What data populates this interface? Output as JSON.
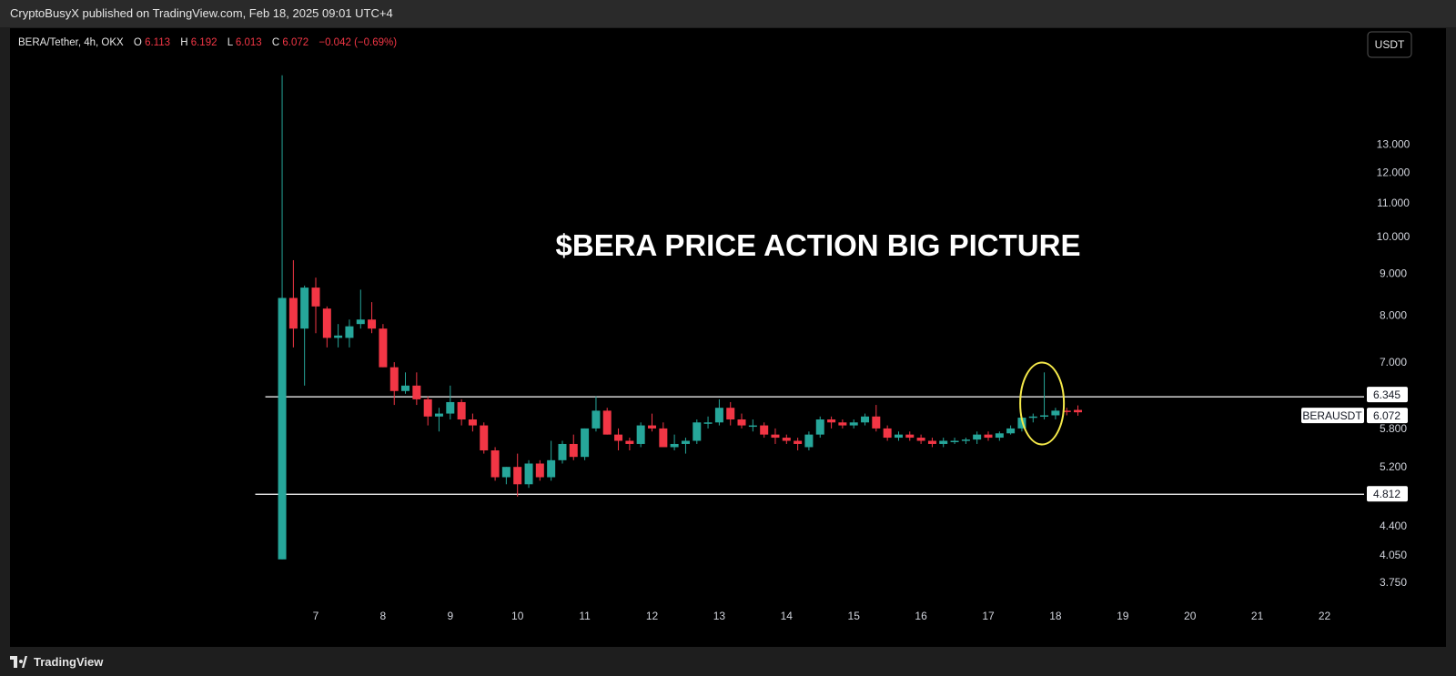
{
  "header": {
    "published_text": "CryptoBusyX published on TradingView.com, Feb 18, 2025 09:01 UTC+4"
  },
  "legend": {
    "symbol": "BERA/Tether, 4h, OKX",
    "o_label": "O",
    "o_value": "6.113",
    "h_label": "H",
    "h_value": "6.192",
    "l_label": "L",
    "l_value": "6.013",
    "c_label": "C",
    "c_value": "6.072",
    "change": "−0.042 (−0.69%)"
  },
  "currency_button": "USDT",
  "annotation": "$BERA PRICE ACTION BIG PICTURE",
  "series_label": "BERAUSDT",
  "footer": {
    "brand": "TradingView"
  },
  "colors": {
    "up": "#26a69a",
    "down": "#f23645",
    "background": "#000000",
    "highlight": "#f5e94a"
  },
  "chart_data": {
    "type": "candlestick",
    "interval": "4h",
    "scale": "log",
    "ylim": [
      3.7,
      16.5
    ],
    "y_ticks": [
      "13.000",
      "12.000",
      "11.000",
      "10.000",
      "9.000",
      "8.000",
      "7.000",
      "5.800",
      "5.200",
      "4.400",
      "4.050",
      "3.750"
    ],
    "x_ticks": [
      "7",
      "8",
      "9",
      "10",
      "11",
      "12",
      "13",
      "14",
      "15",
      "16",
      "17",
      "18",
      "19",
      "20",
      "21",
      "22"
    ],
    "x_range": [
      6.55,
      22.55
    ],
    "levels": [
      {
        "price": 6.345,
        "label": "6.345",
        "from_day": 6.25
      },
      {
        "price": 4.812,
        "label": "4.812",
        "from_day": 6.1
      }
    ],
    "last_price": {
      "value": 6.072,
      "label": "6.072"
    },
    "highlight_day": 17.8,
    "candles": [
      {
        "d": 6.5,
        "o": 4.0,
        "h": 15.8,
        "l": 4.0,
        "c": 8.4
      },
      {
        "d": 6.667,
        "o": 8.4,
        "h": 9.35,
        "l": 7.3,
        "c": 7.7
      },
      {
        "d": 6.833,
        "o": 7.7,
        "h": 8.7,
        "l": 6.55,
        "c": 8.65
      },
      {
        "d": 7.0,
        "o": 8.65,
        "h": 8.9,
        "l": 7.6,
        "c": 8.2
      },
      {
        "d": 7.167,
        "o": 8.15,
        "h": 8.2,
        "l": 7.3,
        "c": 7.5
      },
      {
        "d": 7.333,
        "o": 7.5,
        "h": 7.8,
        "l": 7.3,
        "c": 7.55
      },
      {
        "d": 7.5,
        "o": 7.5,
        "h": 7.9,
        "l": 7.3,
        "c": 7.75
      },
      {
        "d": 7.667,
        "o": 7.8,
        "h": 8.6,
        "l": 7.7,
        "c": 7.9
      },
      {
        "d": 7.833,
        "o": 7.9,
        "h": 8.3,
        "l": 7.6,
        "c": 7.7
      },
      {
        "d": 8.0,
        "o": 7.7,
        "h": 7.8,
        "l": 6.9,
        "c": 6.9
      },
      {
        "d": 8.167,
        "o": 6.9,
        "h": 7.0,
        "l": 6.2,
        "c": 6.45
      },
      {
        "d": 8.333,
        "o": 6.45,
        "h": 6.8,
        "l": 6.4,
        "c": 6.55
      },
      {
        "d": 8.5,
        "o": 6.55,
        "h": 6.8,
        "l": 6.2,
        "c": 6.3
      },
      {
        "d": 8.667,
        "o": 6.3,
        "h": 6.35,
        "l": 5.85,
        "c": 6.0
      },
      {
        "d": 8.833,
        "o": 6.0,
        "h": 6.15,
        "l": 5.75,
        "c": 6.05
      },
      {
        "d": 9.0,
        "o": 6.05,
        "h": 6.55,
        "l": 5.95,
        "c": 6.25
      },
      {
        "d": 9.167,
        "o": 6.25,
        "h": 6.3,
        "l": 5.85,
        "c": 5.95
      },
      {
        "d": 9.333,
        "o": 5.95,
        "h": 6.05,
        "l": 5.75,
        "c": 5.85
      },
      {
        "d": 9.5,
        "o": 5.85,
        "h": 5.9,
        "l": 5.4,
        "c": 5.45
      },
      {
        "d": 9.667,
        "o": 5.45,
        "h": 5.5,
        "l": 5.0,
        "c": 5.05
      },
      {
        "d": 9.833,
        "o": 5.05,
        "h": 5.2,
        "l": 4.95,
        "c": 5.2
      },
      {
        "d": 10.0,
        "o": 5.2,
        "h": 5.4,
        "l": 4.78,
        "c": 4.95
      },
      {
        "d": 10.167,
        "o": 4.95,
        "h": 5.3,
        "l": 4.9,
        "c": 5.25
      },
      {
        "d": 10.333,
        "o": 5.25,
        "h": 5.3,
        "l": 5.0,
        "c": 5.05
      },
      {
        "d": 10.5,
        "o": 5.05,
        "h": 5.6,
        "l": 5.0,
        "c": 5.3
      },
      {
        "d": 10.667,
        "o": 5.3,
        "h": 5.6,
        "l": 5.25,
        "c": 5.55
      },
      {
        "d": 10.833,
        "o": 5.55,
        "h": 5.7,
        "l": 5.3,
        "c": 5.35
      },
      {
        "d": 11.0,
        "o": 5.35,
        "h": 5.8,
        "l": 5.3,
        "c": 5.8
      },
      {
        "d": 11.167,
        "o": 5.8,
        "h": 6.35,
        "l": 5.75,
        "c": 6.1
      },
      {
        "d": 11.333,
        "o": 6.1,
        "h": 6.15,
        "l": 5.7,
        "c": 5.7
      },
      {
        "d": 11.5,
        "o": 5.7,
        "h": 5.8,
        "l": 5.45,
        "c": 5.6
      },
      {
        "d": 11.667,
        "o": 5.6,
        "h": 5.65,
        "l": 5.45,
        "c": 5.55
      },
      {
        "d": 11.833,
        "o": 5.55,
        "h": 5.9,
        "l": 5.5,
        "c": 5.85
      },
      {
        "d": 12.0,
        "o": 5.85,
        "h": 6.05,
        "l": 5.75,
        "c": 5.8
      },
      {
        "d": 12.167,
        "o": 5.8,
        "h": 5.9,
        "l": 5.5,
        "c": 5.5
      },
      {
        "d": 12.333,
        "o": 5.5,
        "h": 5.7,
        "l": 5.45,
        "c": 5.55
      },
      {
        "d": 12.5,
        "o": 5.55,
        "h": 5.65,
        "l": 5.4,
        "c": 5.6
      },
      {
        "d": 12.667,
        "o": 5.6,
        "h": 5.95,
        "l": 5.55,
        "c": 5.9
      },
      {
        "d": 12.833,
        "o": 5.9,
        "h": 6.0,
        "l": 5.8,
        "c": 5.9
      },
      {
        "d": 13.0,
        "o": 5.9,
        "h": 6.3,
        "l": 5.85,
        "c": 6.15
      },
      {
        "d": 13.167,
        "o": 6.15,
        "h": 6.25,
        "l": 5.85,
        "c": 5.95
      },
      {
        "d": 13.333,
        "o": 5.95,
        "h": 6.05,
        "l": 5.8,
        "c": 5.85
      },
      {
        "d": 13.5,
        "o": 5.85,
        "h": 5.95,
        "l": 5.75,
        "c": 5.85
      },
      {
        "d": 13.667,
        "o": 5.85,
        "h": 5.9,
        "l": 5.65,
        "c": 5.7
      },
      {
        "d": 13.833,
        "o": 5.7,
        "h": 5.8,
        "l": 5.55,
        "c": 5.65
      },
      {
        "d": 14.0,
        "o": 5.65,
        "h": 5.7,
        "l": 5.55,
        "c": 5.6
      },
      {
        "d": 14.167,
        "o": 5.6,
        "h": 5.65,
        "l": 5.45,
        "c": 5.55
      },
      {
        "d": 14.333,
        "o": 5.5,
        "h": 5.75,
        "l": 5.45,
        "c": 5.7
      },
      {
        "d": 14.5,
        "o": 5.7,
        "h": 6.0,
        "l": 5.65,
        "c": 5.95
      },
      {
        "d": 14.667,
        "o": 5.95,
        "h": 6.0,
        "l": 5.8,
        "c": 5.9
      },
      {
        "d": 14.833,
        "o": 5.9,
        "h": 5.95,
        "l": 5.8,
        "c": 5.85
      },
      {
        "d": 15.0,
        "o": 5.85,
        "h": 5.95,
        "l": 5.8,
        "c": 5.9
      },
      {
        "d": 15.167,
        "o": 5.9,
        "h": 6.05,
        "l": 5.85,
        "c": 6.0
      },
      {
        "d": 15.333,
        "o": 6.0,
        "h": 6.2,
        "l": 5.75,
        "c": 5.8
      },
      {
        "d": 15.5,
        "o": 5.8,
        "h": 5.85,
        "l": 5.6,
        "c": 5.65
      },
      {
        "d": 15.667,
        "o": 5.65,
        "h": 5.75,
        "l": 5.6,
        "c": 5.7
      },
      {
        "d": 15.833,
        "o": 5.7,
        "h": 5.75,
        "l": 5.6,
        "c": 5.65
      },
      {
        "d": 16.0,
        "o": 5.65,
        "h": 5.7,
        "l": 5.55,
        "c": 5.6
      },
      {
        "d": 16.167,
        "o": 5.6,
        "h": 5.65,
        "l": 5.5,
        "c": 5.55
      },
      {
        "d": 16.333,
        "o": 5.55,
        "h": 5.65,
        "l": 5.5,
        "c": 5.6
      },
      {
        "d": 16.5,
        "o": 5.6,
        "h": 5.65,
        "l": 5.55,
        "c": 5.6
      },
      {
        "d": 16.667,
        "o": 5.6,
        "h": 5.65,
        "l": 5.55,
        "c": 5.62
      },
      {
        "d": 16.833,
        "o": 5.62,
        "h": 5.75,
        "l": 5.55,
        "c": 5.7
      },
      {
        "d": 17.0,
        "o": 5.7,
        "h": 5.75,
        "l": 5.6,
        "c": 5.65
      },
      {
        "d": 17.167,
        "o": 5.65,
        "h": 5.75,
        "l": 5.6,
        "c": 5.72
      },
      {
        "d": 17.333,
        "o": 5.72,
        "h": 5.85,
        "l": 5.7,
        "c": 5.8
      },
      {
        "d": 17.5,
        "o": 5.8,
        "h": 6.0,
        "l": 5.75,
        "c": 5.98
      },
      {
        "d": 17.667,
        "o": 5.98,
        "h": 6.05,
        "l": 5.9,
        "c": 6.0
      },
      {
        "d": 17.833,
        "o": 6.0,
        "h": 6.8,
        "l": 5.95,
        "c": 6.02
      },
      {
        "d": 18.0,
        "o": 6.02,
        "h": 6.15,
        "l": 5.95,
        "c": 6.1
      },
      {
        "d": 18.167,
        "o": 6.1,
        "h": 6.15,
        "l": 6.02,
        "c": 6.08
      },
      {
        "d": 18.333,
        "o": 6.113,
        "h": 6.192,
        "l": 6.013,
        "c": 6.072
      }
    ]
  }
}
